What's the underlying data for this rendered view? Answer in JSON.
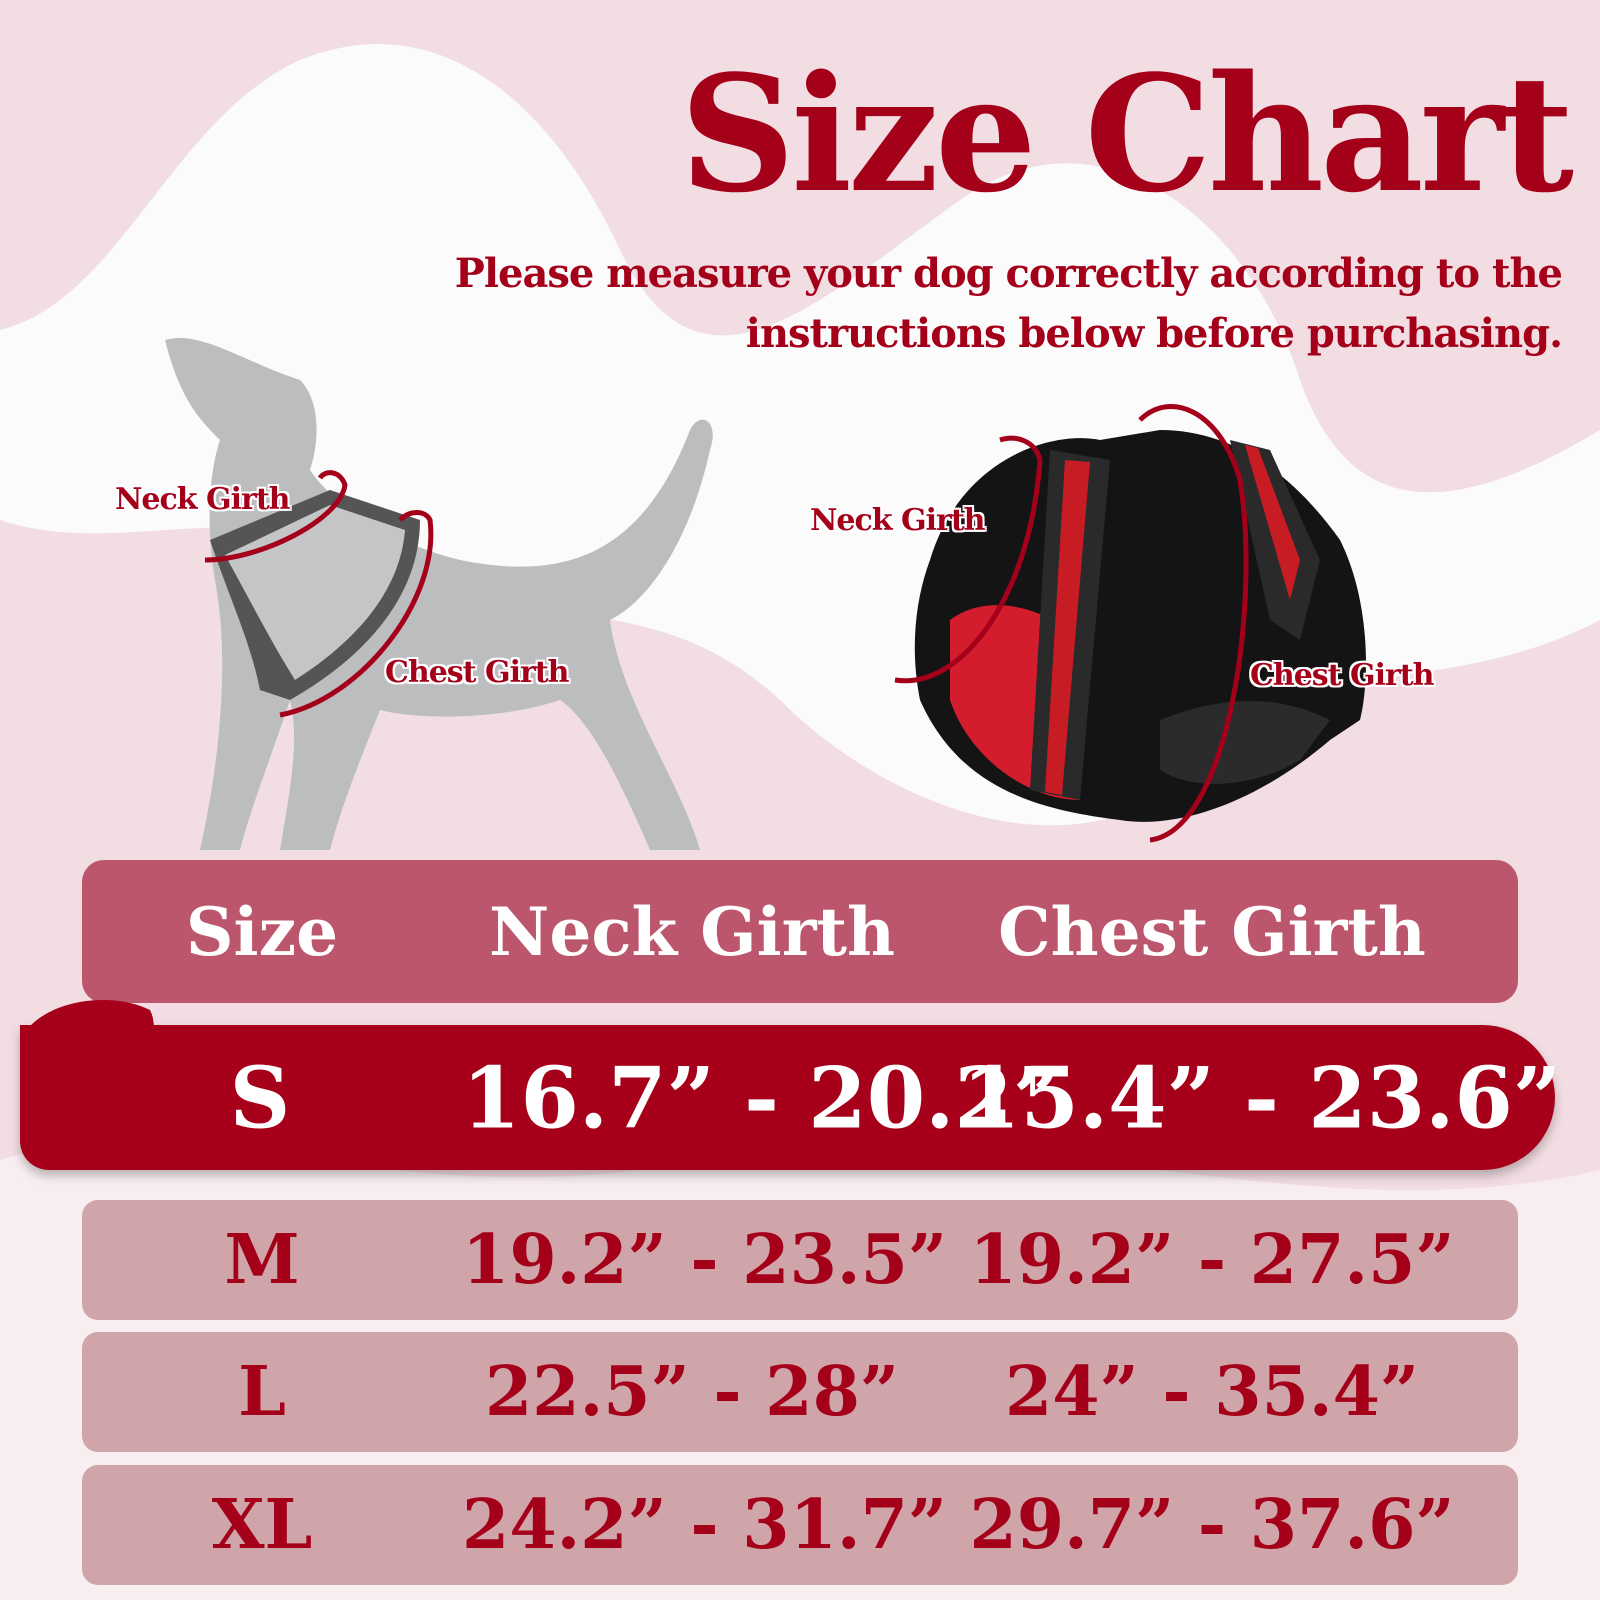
{
  "title": "Size Chart",
  "subtitle": [
    "Please measure your dog correctly according to the",
    "instructions below before purchasing."
  ],
  "diagram_labels": {
    "dog_neck": "Neck Girth",
    "dog_chest": "Chest Girth",
    "harness_neck": "Neck Girth",
    "harness_chest": "Chest Girth"
  },
  "colors": {
    "accent": "#a5001a",
    "background": "#f2dde2",
    "row": "#d0a5aa"
  },
  "table": {
    "headers": [
      "Size",
      "Neck Girth",
      "Chest Girth"
    ],
    "rows": [
      {
        "size": "S",
        "neck": "16.7” - 20.2”",
        "chest": "15.4” - 23.6”",
        "highlighted": true
      },
      {
        "size": "M",
        "neck": "19.2” - 23.5”",
        "chest": "19.2” - 27.5”"
      },
      {
        "size": "L",
        "neck": "22.5” - 28”",
        "chest": "24” - 35.4”"
      },
      {
        "size": "XL",
        "neck": "24.2” - 31.7”",
        "chest": "29.7” - 37.6”"
      }
    ]
  }
}
